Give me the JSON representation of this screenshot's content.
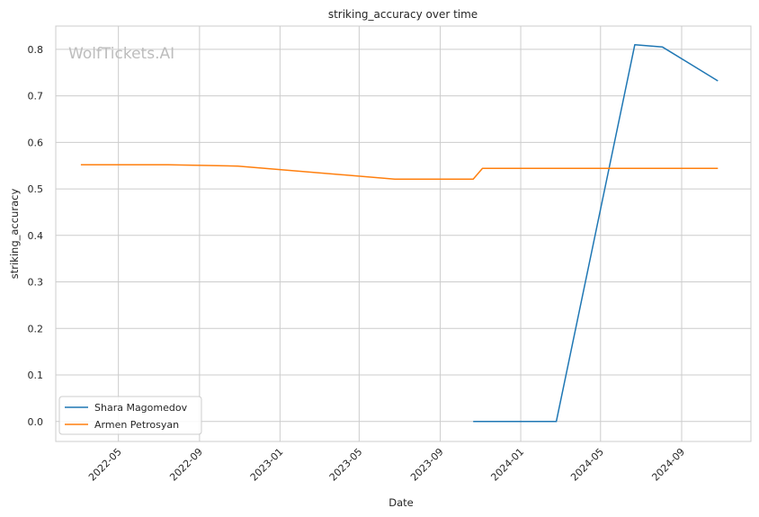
{
  "chart_data": {
    "type": "line",
    "title": "striking_accuracy over time",
    "xlabel": "Date",
    "ylabel": "striking_accuracy",
    "watermark": "WolfTickets.AI",
    "x_ticks": [
      "2022-05",
      "2022-09",
      "2023-01",
      "2023-05",
      "2023-09",
      "2024-01",
      "2024-05",
      "2024-09"
    ],
    "y_ticks": [
      0.0,
      0.1,
      0.2,
      0.3,
      0.4,
      0.5,
      0.6,
      0.7,
      0.8
    ],
    "xlim": [
      "2022-01-26",
      "2024-12-15"
    ],
    "ylim": [
      -0.043,
      0.85
    ],
    "grid": true,
    "legend_position": "lower-left",
    "series": [
      {
        "name": "Shara Magomedov",
        "color": "#1f77b4",
        "points": [
          {
            "x": "2023-10-21",
            "y": 0.0
          },
          {
            "x": "2024-02-24",
            "y": 0.0
          },
          {
            "x": "2024-06-22",
            "y": 0.81
          },
          {
            "x": "2024-08-03",
            "y": 0.805
          },
          {
            "x": "2024-10-26",
            "y": 0.732
          }
        ]
      },
      {
        "name": "Armen Petrosyan",
        "color": "#ff7f0e",
        "points": [
          {
            "x": "2022-03-05",
            "y": 0.552
          },
          {
            "x": "2022-07-16",
            "y": 0.552
          },
          {
            "x": "2022-10-29",
            "y": 0.549
          },
          {
            "x": "2023-06-24",
            "y": 0.521
          },
          {
            "x": "2023-10-21",
            "y": 0.521
          },
          {
            "x": "2023-11-04",
            "y": 0.544
          },
          {
            "x": "2024-10-26",
            "y": 0.544
          }
        ]
      }
    ]
  }
}
